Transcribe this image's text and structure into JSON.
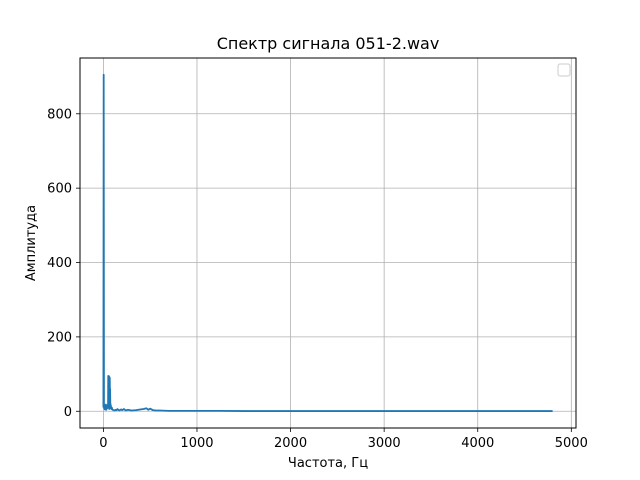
{
  "chart_data": {
    "type": "line",
    "title": "Спектр сигнала 051-2.wav",
    "xlabel": "Частота, Гц",
    "ylabel": "Амплитуда",
    "xlim": [
      -250,
      5050
    ],
    "ylim": [
      -45,
      950
    ],
    "x_ticks": [
      0,
      1000,
      2000,
      3000,
      4000,
      5000
    ],
    "y_ticks": [
      0,
      200,
      400,
      600,
      800
    ],
    "grid": true,
    "legend": "top-right, empty",
    "series_color": "#1f77b4",
    "series": [
      {
        "x": [
          0,
          3,
          6,
          9,
          12,
          15,
          18,
          22,
          26,
          30,
          34,
          38,
          42,
          46,
          50,
          52,
          54,
          56,
          58,
          60,
          62,
          64,
          66,
          68,
          70,
          72,
          74,
          76,
          78,
          80,
          85,
          90,
          95,
          100,
          110,
          120,
          130,
          140,
          150,
          170,
          190,
          200,
          220,
          240,
          260,
          300,
          350,
          400,
          430,
          460,
          480,
          500,
          530,
          560,
          600,
          700,
          800,
          900,
          1000,
          1250,
          1500,
          2000,
          2500,
          3000,
          3500,
          4000,
          4500,
          4800
        ],
        "y": [
          10,
          905,
          20,
          8,
          15,
          5,
          12,
          6,
          18,
          4,
          16,
          7,
          14,
          9,
          20,
          95,
          12,
          93,
          10,
          94,
          6,
          92,
          15,
          90,
          8,
          60,
          12,
          20,
          9,
          15,
          6,
          10,
          5,
          4,
          3,
          2,
          4,
          3,
          6,
          2,
          5,
          3,
          6,
          2,
          4,
          2,
          3,
          5,
          6,
          8,
          4,
          7,
          3,
          2,
          2,
          1,
          1,
          1,
          1,
          1,
          0.5,
          0.5,
          0.5,
          0.5,
          0.5,
          0.5,
          0.5,
          0.5
        ]
      }
    ]
  }
}
